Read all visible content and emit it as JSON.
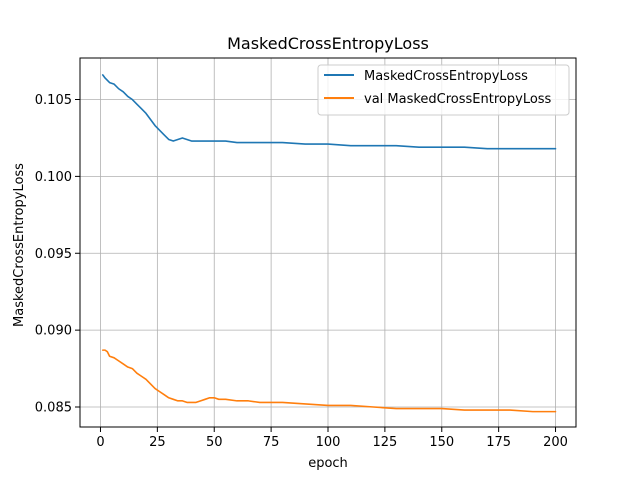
{
  "chart_data": {
    "type": "line",
    "title": "MaskedCrossEntropyLoss",
    "xlabel": "epoch",
    "ylabel": "MaskedCrossEntropyLoss",
    "xlim": [
      -9,
      209
    ],
    "ylim": [
      0.0837,
      0.1077
    ],
    "xticks": [
      0,
      25,
      50,
      75,
      100,
      125,
      150,
      175,
      200
    ],
    "yticks": [
      0.085,
      0.09,
      0.095,
      0.1,
      0.105
    ],
    "ytick_labels": [
      "0.085",
      "0.090",
      "0.095",
      "0.100",
      "0.105"
    ],
    "grid": true,
    "legend_position": "top-right",
    "series": [
      {
        "name": "MaskedCrossEntropyLoss",
        "color": "#1f77b4",
        "x": [
          1,
          2,
          4,
          6,
          8,
          10,
          12,
          14,
          16,
          18,
          20,
          22,
          24,
          26,
          28,
          30,
          32,
          34,
          36,
          38,
          40,
          45,
          50,
          55,
          60,
          70,
          80,
          90,
          100,
          110,
          120,
          130,
          140,
          150,
          160,
          170,
          180,
          190,
          200
        ],
        "y": [
          0.1066,
          0.1064,
          0.1061,
          0.106,
          0.1057,
          0.1055,
          0.1052,
          0.105,
          0.1047,
          0.1044,
          0.1041,
          0.1037,
          0.1033,
          0.103,
          0.1027,
          0.1024,
          0.1023,
          0.1024,
          0.1025,
          0.1024,
          0.1023,
          0.1023,
          0.1023,
          0.1023,
          0.1022,
          0.1022,
          0.1022,
          0.1021,
          0.1021,
          0.102,
          0.102,
          0.102,
          0.1019,
          0.1019,
          0.1019,
          0.1018,
          0.1018,
          0.1018,
          0.1018
        ]
      },
      {
        "name": "val MaskedCrossEntropyLoss",
        "color": "#ff7f0e",
        "x": [
          1,
          2,
          3,
          4,
          6,
          8,
          10,
          12,
          14,
          16,
          18,
          20,
          22,
          24,
          26,
          28,
          30,
          32,
          34,
          36,
          38,
          40,
          42,
          44,
          46,
          48,
          50,
          52,
          55,
          60,
          65,
          70,
          80,
          90,
          100,
          110,
          120,
          130,
          140,
          150,
          160,
          170,
          180,
          190,
          200
        ],
        "y": [
          0.0887,
          0.0887,
          0.0886,
          0.0883,
          0.0882,
          0.088,
          0.0878,
          0.0876,
          0.0875,
          0.0872,
          0.087,
          0.0868,
          0.0865,
          0.0862,
          0.086,
          0.0858,
          0.0856,
          0.0855,
          0.0854,
          0.0854,
          0.0853,
          0.0853,
          0.0853,
          0.0854,
          0.0855,
          0.0856,
          0.0856,
          0.0855,
          0.0855,
          0.0854,
          0.0854,
          0.0853,
          0.0853,
          0.0852,
          0.0851,
          0.0851,
          0.085,
          0.0849,
          0.0849,
          0.0849,
          0.0848,
          0.0848,
          0.0848,
          0.0847,
          0.0847
        ]
      }
    ]
  }
}
